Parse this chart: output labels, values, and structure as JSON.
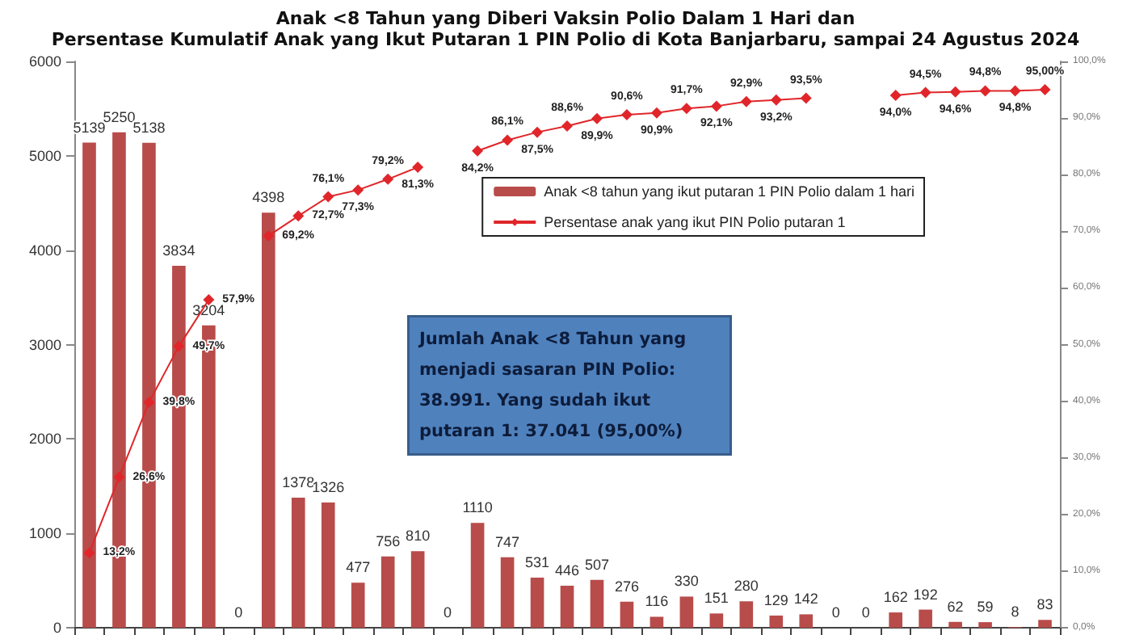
{
  "chart_data": {
    "type": "bar",
    "title": "Anak <8 Tahun yang Diberi Vaksin Polio Dalam 1 Hari dan",
    "subtitle": "Persentase Kumulatif Anak yang Ikut Putaran 1 PIN Polio di Kota Banjarbaru, sampai 24 Agustus 2024",
    "annotations": [
      "Jumlah Anak <8 Tahun yang menjadi sasaran PIN Polio: 38.991. Yang sudah ikut putaran 1: 37.041 (95,00%)"
    ],
    "categories": [
      null,
      null,
      null,
      null,
      null,
      null,
      null,
      null,
      null,
      null,
      null,
      null,
      null,
      null,
      null,
      null,
      null,
      null,
      null,
      null,
      null,
      null,
      null,
      null,
      null,
      null,
      null,
      null,
      null,
      null,
      null,
      null,
      null
    ],
    "series": [
      {
        "name": "Anak <8 tahun yang ikut putaran 1 PIN Polio dalam 1 hari",
        "color": "#b84c4a",
        "values": [
          5139,
          5250,
          5138,
          3834,
          3204,
          0,
          4398,
          1378,
          1326,
          477,
          756,
          810,
          0,
          1110,
          747,
          531,
          446,
          507,
          276,
          116,
          330,
          151,
          280,
          129,
          142,
          0,
          0,
          162,
          192,
          62,
          59,
          8,
          83
        ],
        "value_labels": [
          "5139",
          "5250",
          "5138",
          "3834",
          "3204",
          "0",
          "4398",
          "1378",
          "1326",
          "477",
          "756",
          "810",
          "0",
          "1110",
          "747",
          "531",
          "446",
          "507",
          "276",
          "116",
          "330",
          "151",
          "280",
          "129",
          "142",
          "0",
          "0",
          "162",
          "192",
          "62",
          "59",
          "8",
          "83"
        ]
      },
      {
        "name": "Persentase anak yang ikut PIN Polio putaran 1",
        "type": "line",
        "axis": "y2",
        "color": "#e0262a",
        "values": [
          13.2,
          26.6,
          39.8,
          49.7,
          57.9,
          null,
          69.2,
          72.7,
          76.1,
          77.3,
          79.2,
          81.3,
          null,
          84.2,
          86.1,
          87.5,
          88.6,
          89.9,
          90.6,
          90.9,
          91.7,
          92.1,
          92.9,
          93.2,
          93.5,
          null,
          null,
          94.0,
          94.5,
          94.6,
          94.8,
          94.8,
          95.0
        ],
        "value_labels": [
          "13,2%",
          "26,6%",
          "39,8%",
          "49,7%",
          "57,9%",
          null,
          "69,2%",
          "72,7%",
          "76,1%",
          "77,3%",
          "79,2%",
          "81,3%",
          null,
          "84,2%",
          "86,1%",
          "87,5%",
          "88,6%",
          "89,9%",
          "90,6%",
          "90,9%",
          "91,7%",
          "92,1%",
          "92,9%",
          "93,2%",
          "93,5%",
          null,
          null,
          "94,0%",
          "94,5%",
          "94,6%",
          "94,8%",
          "94,8%",
          "95,00%"
        ]
      }
    ],
    "ylim": [
      0,
      6000
    ],
    "yticks": [
      0,
      1000,
      2000,
      3000,
      4000,
      5000,
      6000
    ],
    "y2lim": [
      0,
      100
    ],
    "y2ticks": [
      {
        "value": 0,
        "label": "0,0%"
      },
      {
        "value": 10,
        "label": "10,0%"
      },
      {
        "value": 20,
        "label": "20,0%"
      },
      {
        "value": 30,
        "label": "30,0%"
      },
      {
        "value": 40,
        "label": "40,0%"
      },
      {
        "value": 50,
        "label": "50,0%"
      },
      {
        "value": 60,
        "label": "60,0%"
      },
      {
        "value": 70,
        "label": "70,0%"
      },
      {
        "value": 80,
        "label": "80,0%"
      },
      {
        "value": 90,
        "label": "90,0%"
      },
      {
        "value": 100,
        "label": "100,0%"
      }
    ],
    "tick_labels": "y",
    "marker": "diamond",
    "legend": "top right",
    "grid": false
  }
}
